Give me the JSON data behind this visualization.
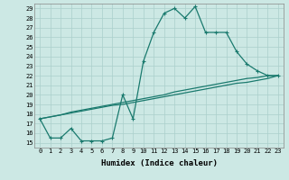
{
  "title": "",
  "xlabel": "Humidex (Indice chaleur)",
  "ylabel": "",
  "xlim": [
    -0.5,
    23.5
  ],
  "ylim": [
    14.5,
    29.5
  ],
  "xticks": [
    0,
    1,
    2,
    3,
    4,
    5,
    6,
    7,
    8,
    9,
    10,
    11,
    12,
    13,
    14,
    15,
    16,
    17,
    18,
    19,
    20,
    21,
    22,
    23
  ],
  "yticks": [
    15,
    16,
    17,
    18,
    19,
    20,
    21,
    22,
    23,
    24,
    25,
    26,
    27,
    28,
    29
  ],
  "bg_color": "#cce8e4",
  "line_color": "#1a7a6e",
  "grid_color": "#aacfcb",
  "line1_x": [
    0,
    1,
    2,
    3,
    4,
    5,
    6,
    7,
    8,
    9,
    10,
    11,
    12,
    13,
    14,
    15,
    16,
    17,
    18,
    19,
    20,
    21,
    22,
    23
  ],
  "line1_y": [
    17.5,
    15.5,
    15.5,
    16.5,
    15.2,
    15.2,
    15.2,
    15.5,
    20.0,
    17.5,
    23.5,
    26.5,
    28.5,
    29.0,
    28.0,
    29.2,
    26.5,
    26.5,
    26.5,
    24.5,
    23.2,
    22.5,
    22.0,
    22.0
  ],
  "line2_x": [
    0,
    23
  ],
  "line2_y": [
    17.5,
    22.0
  ],
  "line3_x": [
    0,
    23
  ],
  "line3_y": [
    17.5,
    22.0
  ],
  "line2_full_x": [
    0,
    1,
    2,
    3,
    4,
    5,
    6,
    7,
    8,
    9,
    10,
    11,
    12,
    13,
    14,
    15,
    16,
    17,
    18,
    19,
    20,
    21,
    22,
    23
  ],
  "line2_full_y": [
    17.5,
    17.7,
    17.9,
    18.2,
    18.4,
    18.6,
    18.8,
    19.0,
    19.2,
    19.4,
    19.6,
    19.8,
    20.0,
    20.3,
    20.5,
    20.7,
    20.9,
    21.1,
    21.3,
    21.5,
    21.7,
    21.8,
    22.0,
    22.0
  ],
  "line3_full_x": [
    0,
    1,
    2,
    3,
    4,
    5,
    6,
    7,
    8,
    9,
    10,
    11,
    12,
    13,
    14,
    15,
    16,
    17,
    18,
    19,
    20,
    21,
    22,
    23
  ],
  "line3_full_y": [
    17.5,
    17.7,
    17.9,
    18.1,
    18.3,
    18.5,
    18.7,
    18.9,
    19.0,
    19.2,
    19.4,
    19.6,
    19.8,
    20.0,
    20.2,
    20.4,
    20.6,
    20.8,
    21.0,
    21.2,
    21.3,
    21.5,
    21.7,
    22.0
  ]
}
